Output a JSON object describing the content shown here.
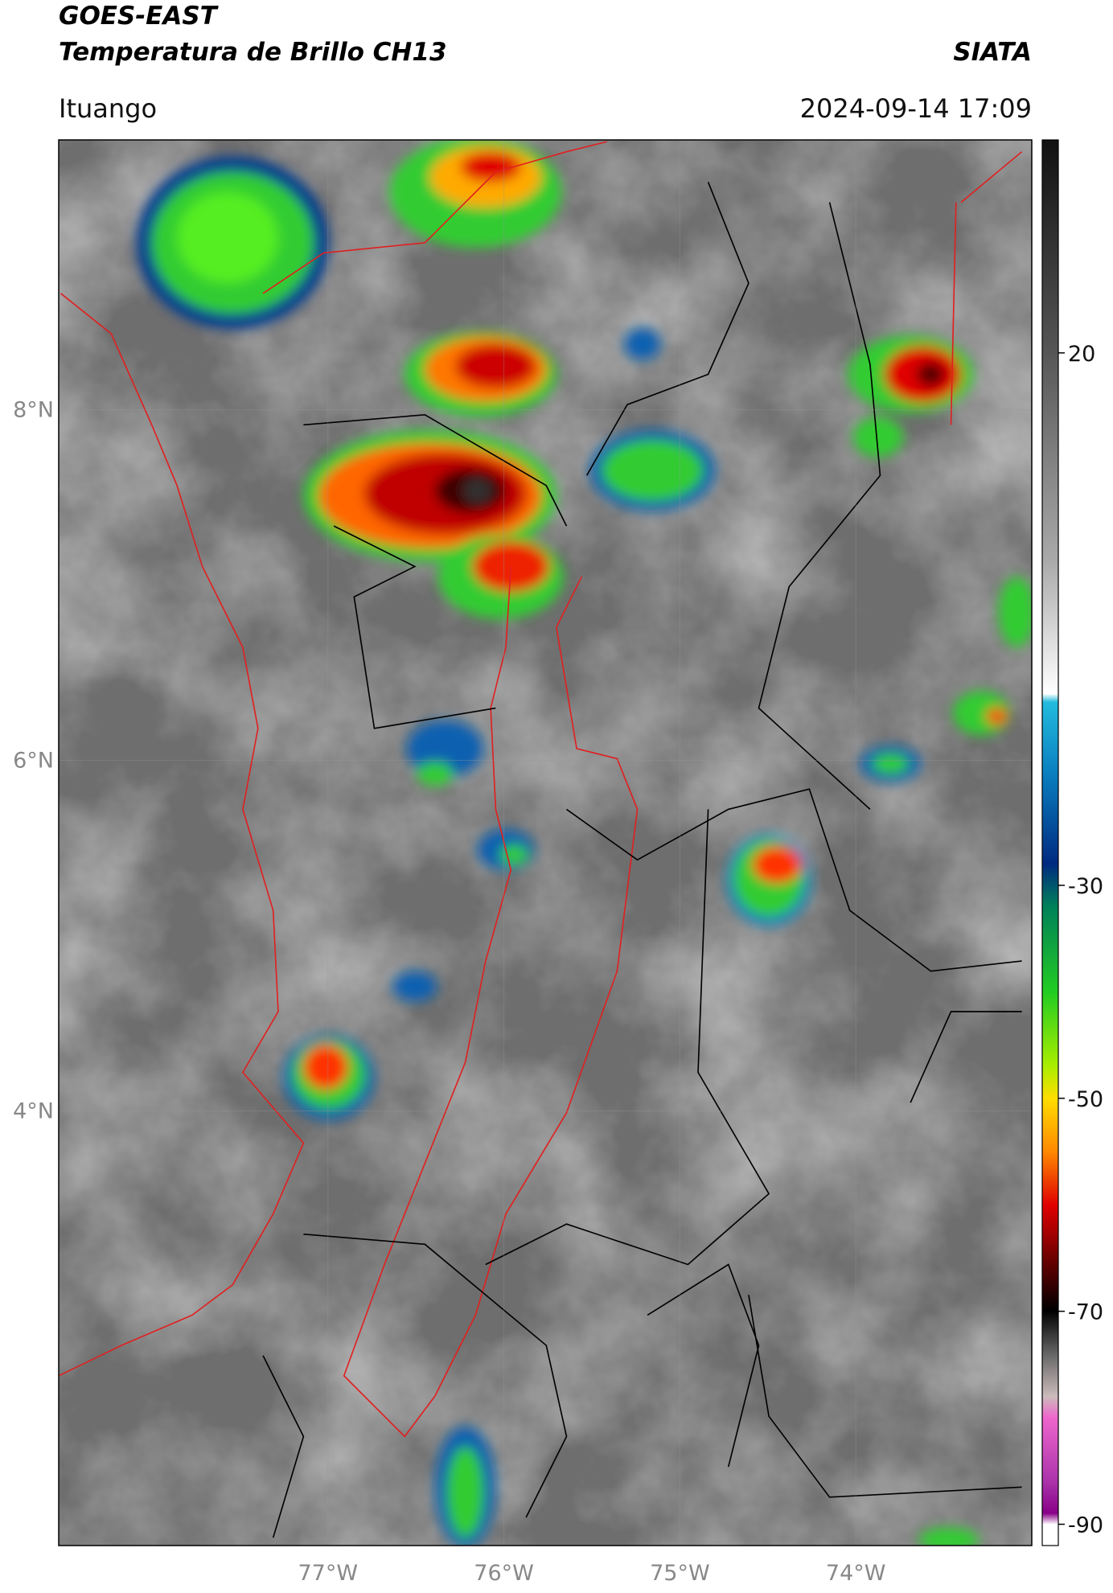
{
  "header": {
    "title": "GOES-EAST",
    "subtitle": "Temperatura de Brillo CH13",
    "agency": "SIATA",
    "location": "Ituango",
    "datetime": "2024-09-14 17:09"
  },
  "map": {
    "xlim": [
      -78.53,
      -73.0
    ],
    "ylim": [
      1.52,
      9.54
    ],
    "xticks": [
      {
        "value": -77,
        "label": "77°W"
      },
      {
        "value": -76,
        "label": "76°W"
      },
      {
        "value": -75,
        "label": "75°W"
      },
      {
        "value": -74,
        "label": "74°W"
      }
    ],
    "yticks": [
      {
        "value": 8,
        "label": "8°N"
      },
      {
        "value": 6,
        "label": "6°N"
      },
      {
        "value": 4,
        "label": "4°N"
      }
    ]
  },
  "colorbar": {
    "lim": [
      -92,
      40
    ],
    "ticks": [
      20,
      -30,
      -50,
      -70,
      -90
    ]
  }
}
